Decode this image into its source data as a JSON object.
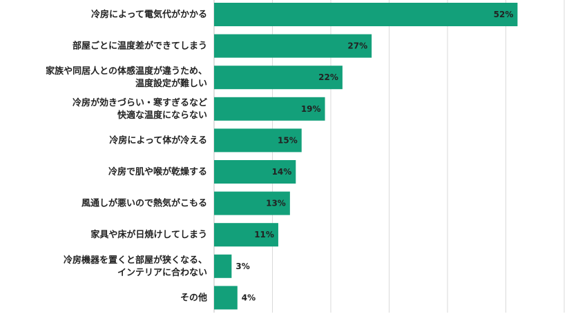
{
  "chart_data": {
    "type": "bar",
    "orientation": "horizontal",
    "categories": [
      [
        "冷房によって電気代がかかる"
      ],
      [
        "部屋ごとに温度差ができてしまう"
      ],
      [
        "家族や同居人との体感温度が違うため、",
        "温度設定が難しい"
      ],
      [
        "冷房が効きづらい・寒すぎるなど",
        "快適な温度にならない"
      ],
      [
        "冷房によって体が冷える"
      ],
      [
        "冷房で肌や喉が乾燥する"
      ],
      [
        "風通しが悪いので熱気がこもる"
      ],
      [
        "家具や床が日焼けしてしまう"
      ],
      [
        "冷房機器を置くと部屋が狭くなる、",
        "インテリアに合わない"
      ],
      [
        "その他"
      ]
    ],
    "values": [
      52,
      27,
      22,
      19,
      15,
      14,
      13,
      11,
      3,
      4
    ],
    "value_labels": [
      "52%",
      "27%",
      "22%",
      "19%",
      "15%",
      "14%",
      "13%",
      "11%",
      "3%",
      "4%"
    ],
    "xlim": [
      0,
      60
    ],
    "grid": true,
    "legend": "none",
    "bar_color": "#13a07a",
    "grid_color": "#d9d9d9"
  }
}
